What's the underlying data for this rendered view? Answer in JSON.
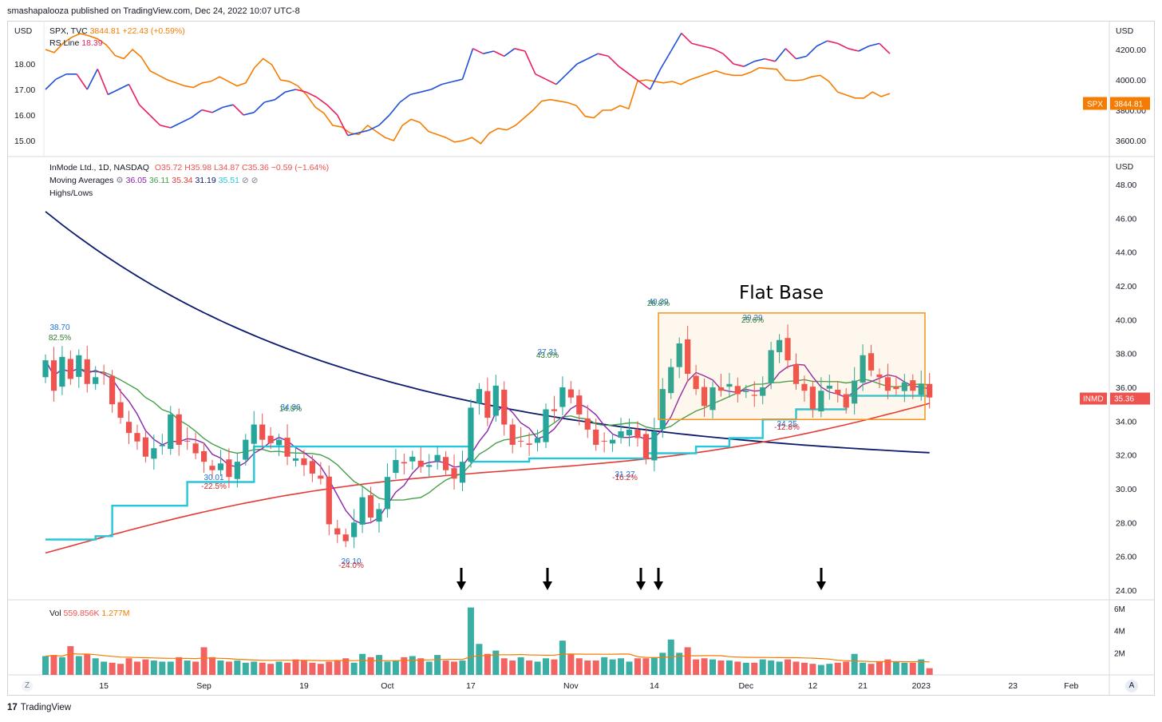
{
  "header": {
    "published": "smashapalooza published on TradingView.com, Dec 24, 2022 10:07 UTC-8"
  },
  "footer": {
    "brand": "TradingView",
    "logo_glyph": "17",
    "zoom_glyph": "Z",
    "auto_glyph": "A"
  },
  "colors": {
    "up": "#26a69a",
    "down": "#ef5350",
    "ma_purple": "#8e24aa",
    "ma_green": "#43a047",
    "ma_red": "#e53935",
    "ma_blue": "#0d1b6e",
    "highs_lows": "#26c6da",
    "spx_line": "#f57c00",
    "rs_line": "#e91e63",
    "base_box": "#f7931e"
  },
  "top_legend": {
    "spx_label": "SPX, TVC",
    "spx_value": "3844.81",
    "spx_change": "+22.43 (+0.59%)",
    "rs_label": "RS Line",
    "rs_value": "18.39",
    "usd": "USD"
  },
  "main_legend": {
    "title": "InMode Ltd., 1D, NASDAQ",
    "o": "O35.72",
    "h": "H35.98",
    "l": "L34.87",
    "c": "C35.36",
    "chg": "−0.59 (−1.64%)",
    "ma_label": "Moving Averages",
    "ma_values": [
      "36.05",
      "36.11",
      "35.34",
      "31.19",
      "35.51"
    ],
    "highs_lows": "Highs/Lows",
    "usd": "USD"
  },
  "vol_legend": {
    "label": "Vol",
    "v1": "559.856K",
    "v2": "1.277M"
  },
  "chart_data": [
    {
      "type": "line",
      "title": "SPX, TVC",
      "series": [
        {
          "name": "SPX",
          "values": [
            4200,
            4180,
            4240,
            4280,
            4305,
            4290,
            4270,
            4230,
            4160,
            4140,
            4200,
            4150,
            4060,
            4030,
            4000,
            3980,
            3960,
            3950,
            3980,
            3990,
            4020,
            3990,
            3960,
            3980,
            4080,
            4140,
            4100,
            4000,
            3990,
            3960,
            3900,
            3820,
            3780,
            3700,
            3690,
            3650,
            3640,
            3700,
            3660,
            3620,
            3600,
            3700,
            3740,
            3720,
            3660,
            3640,
            3620,
            3590,
            3600,
            3620,
            3580,
            3650,
            3680,
            3670,
            3700,
            3750,
            3800,
            3860,
            3870,
            3860,
            3850,
            3830,
            3760,
            3750,
            3800,
            3800,
            3830,
            3810,
            3990,
            4000,
            3990,
            3980,
            3990,
            3970,
            4000,
            4020,
            4040,
            4060,
            4040,
            4030,
            4030,
            4050,
            4080,
            4075,
            4070,
            4000,
            3995,
            4000,
            4020,
            4030,
            3990,
            3920,
            3900,
            3880,
            3880,
            3920,
            3890,
            3910
          ]
        },
        {
          "name": "RS Line",
          "values": [
            17.0,
            17.4,
            17.6,
            17.6,
            17.0,
            17.8,
            16.8,
            17.0,
            17.2,
            16.4,
            16.0,
            15.6,
            15.5,
            15.7,
            15.9,
            16.2,
            16.1,
            16.3,
            16.4,
            16.0,
            16.1,
            16.5,
            16.6,
            16.9,
            17.0,
            16.9,
            16.7,
            16.4,
            16.0,
            15.2,
            15.3,
            15.4,
            15.6,
            16.0,
            16.5,
            16.8,
            16.9,
            17.0,
            17.2,
            17.3,
            17.4,
            18.6,
            18.4,
            18.5,
            18.3,
            18.6,
            18.5,
            17.6,
            17.4,
            17.2,
            17.6,
            18.0,
            18.2,
            18.4,
            18.3,
            17.9,
            17.6,
            17.3,
            17.0,
            17.8,
            18.5,
            19.2,
            18.8,
            18.7,
            18.6,
            18.4,
            18.0,
            17.9,
            18.1,
            18.2,
            18.1,
            18.6,
            18.2,
            18.3,
            18.7,
            18.9,
            18.8,
            18.6,
            18.5,
            18.7,
            18.8,
            18.4
          ]
        }
      ],
      "y_right_ticks": [
        "4200.00",
        "4000.00",
        "3800.00",
        "3600.00"
      ],
      "y_left_ticks": [
        "18.00",
        "17.00",
        "16.00",
        "15.00"
      ],
      "price_tag": {
        "name": "SPX",
        "value": "3844.81"
      }
    },
    {
      "type": "candlestick",
      "title": "InMode Ltd., 1D, NASDAQ",
      "ylim": [
        23.5,
        49.5
      ],
      "y_ticks": [
        "48.00",
        "46.00",
        "44.00",
        "42.00",
        "40.00",
        "38.00",
        "36.00",
        "34.00",
        "32.00",
        "30.00",
        "28.00",
        "26.00",
        "24.00"
      ],
      "x_tick_labels": [
        {
          "label": "15",
          "i": 7
        },
        {
          "label": "Sep",
          "i": 19
        },
        {
          "label": "19",
          "i": 31
        },
        {
          "label": "Oct",
          "i": 41
        },
        {
          "label": "17",
          "i": 51
        },
        {
          "label": "Nov",
          "i": 63
        },
        {
          "label": "14",
          "i": 73
        },
        {
          "label": "Dec",
          "i": 84
        },
        {
          "label": "12",
          "i": 92
        },
        {
          "label": "21",
          "i": 98
        },
        {
          "label": "2023",
          "i": 105
        },
        {
          "label": "23",
          "i": 116
        },
        {
          "label": "Feb",
          "i": 123
        }
      ],
      "candles_close": [
        37.6,
        35.8,
        37.8,
        36.5,
        37.9,
        36.2,
        36.6,
        36.8,
        35.0,
        34.2,
        33.3,
        32.8,
        31.9,
        32.4,
        32.6,
        34.4,
        32.6,
        32.8,
        32.1,
        31.6,
        31.1,
        31.5,
        30.7,
        31.6,
        32.9,
        33.8,
        32.9,
        32.7,
        32.9,
        31.9,
        31.8,
        31.4,
        30.9,
        30.6,
        27.9,
        27.3,
        26.9,
        28.0,
        29.5,
        28.3,
        28.8,
        30.7,
        31.7,
        31.5,
        31.9,
        31.3,
        31.4,
        32.0,
        31.1,
        30.6,
        31.6,
        34.8,
        35.9,
        34.2,
        36.1,
        33.8,
        32.6,
        32.8,
        32.6,
        33.0,
        34.7,
        34.6,
        36.0,
        35.4,
        34.4,
        33.5,
        32.6,
        32.8,
        32.9,
        33.4,
        33.5,
        33.0,
        31.8,
        33.4,
        35.9,
        37.2,
        38.6,
        36.8,
        35.9,
        34.9,
        36.0,
        35.8,
        36.2,
        35.6,
        35.8,
        35.5,
        36.0,
        38.2,
        38.8,
        37.6,
        36.2,
        35.8,
        34.7,
        35.8,
        36.1,
        35.6,
        34.8,
        36.4,
        37.9,
        37.0,
        36.6,
        35.8,
        35.9,
        36.3,
        35.8,
        36.2,
        35.4
      ],
      "annotations": [
        {
          "price": "38.70",
          "pct": "82.5%"
        },
        {
          "price": "30.01",
          "pct": "-22.5%"
        },
        {
          "price": "34.36",
          "pct": "14.5%"
        },
        {
          "price": "26.10",
          "pct": "-24.0%"
        },
        {
          "price": "37.31",
          "pct": "43.0%"
        },
        {
          "price": "31.27",
          "pct": "-16.2%"
        },
        {
          "price": "40.29",
          "pct": "28.8%"
        },
        {
          "price": "39.29",
          "pct": "25.6%"
        },
        {
          "price": "34.25",
          "pct": "-12.8%"
        }
      ],
      "base_label": "Flat Base",
      "base_range": [
        34.1,
        40.4
      ],
      "price_tag": {
        "name": "INMD",
        "value": "35.36"
      }
    },
    {
      "type": "bar",
      "title": "Vol",
      "y_ticks": [
        "6M",
        "4M",
        "2M"
      ],
      "values_millions": [
        1.7,
        1.8,
        1.6,
        2.6,
        1.7,
        1.9,
        1.5,
        1.2,
        1.1,
        1.0,
        1.5,
        1.2,
        1.4,
        1.3,
        1.2,
        1.2,
        1.6,
        1.3,
        1.2,
        2.5,
        1.6,
        1.3,
        1.2,
        1.3,
        1.1,
        1.2,
        1.1,
        1.0,
        1.2,
        1.1,
        1.4,
        1.3,
        1.1,
        1.0,
        1.2,
        1.3,
        1.5,
        1.1,
        1.9,
        1.6,
        1.8,
        1.2,
        1.3,
        1.6,
        1.7,
        1.5,
        1.2,
        1.8,
        1.3,
        1.2,
        1.3,
        6.1,
        2.8,
        1.9,
        2.2,
        1.5,
        1.3,
        1.6,
        1.3,
        1.2,
        1.5,
        1.4,
        3.1,
        1.9,
        1.5,
        1.3,
        1.3,
        1.6,
        1.4,
        1.5,
        1.2,
        1.5,
        1.5,
        1.6,
        2.0,
        3.2,
        2.0,
        2.5,
        1.4,
        1.5,
        1.4,
        1.3,
        1.3,
        1.2,
        1.1,
        1.1,
        1.4,
        1.3,
        1.2,
        1.4,
        1.2,
        1.1,
        1.0,
        0.9,
        1.0,
        1.1,
        1.2,
        1.9,
        1.1,
        1.0,
        1.2,
        1.4,
        1.2,
        1.1,
        1.1,
        1.4,
        0.6
      ],
      "ylim": [
        0,
        6.5
      ]
    }
  ]
}
